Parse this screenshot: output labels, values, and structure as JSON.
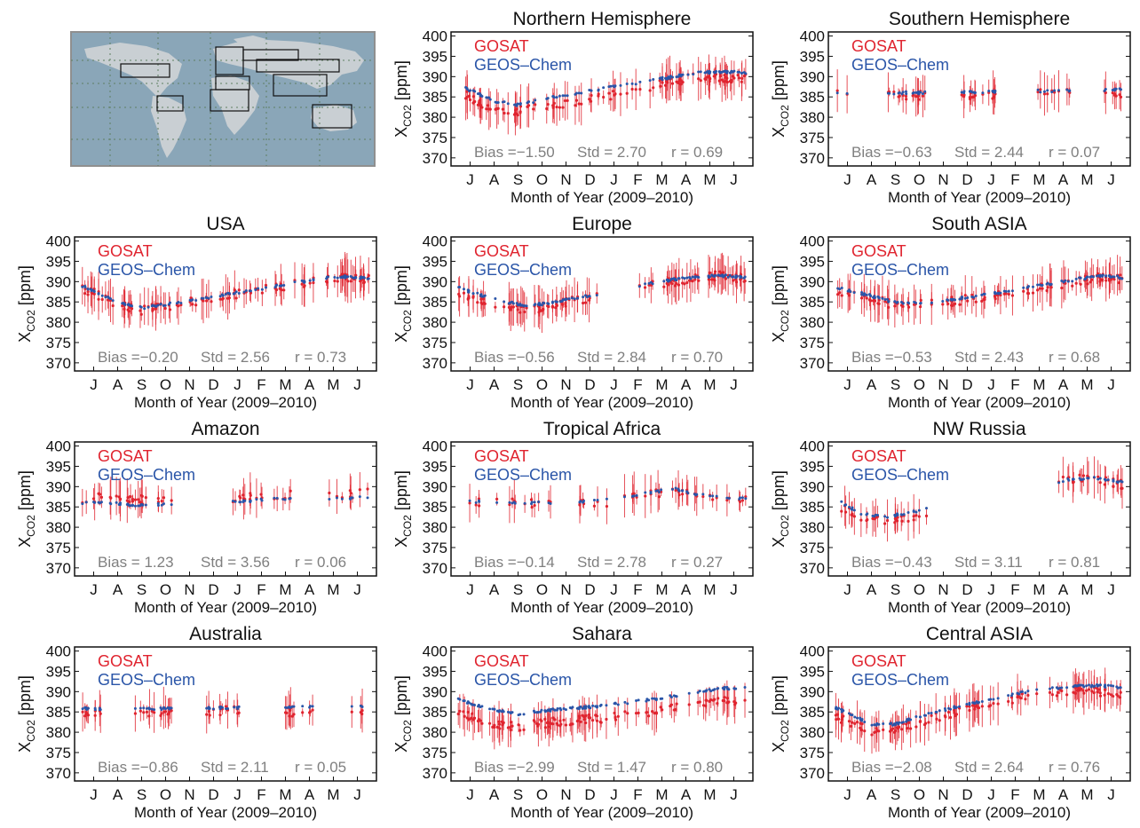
{
  "figure": {
    "ylabel_main": "X",
    "ylabel_sub": "CO2",
    "ylabel_unit": " [ppm]",
    "xlabel": "Month of Year (2009–2010)",
    "legend": [
      "GOSAT",
      "GEOS–Chem"
    ],
    "colors": {
      "gosat": "#e0242f",
      "geos_chem": "#2a55a8",
      "stats": "#7f7f7f",
      "map_land": "#c9cfd3",
      "map_ocean": "#8aa6b8"
    }
  },
  "chart_data": [
    {
      "type": "scatter",
      "title": "Northern Hemisphere",
      "x_ticks": [
        "J",
        "A",
        "S",
        "O",
        "N",
        "D",
        "J",
        "F",
        "M",
        "A",
        "M",
        "J"
      ],
      "ylim": [
        368,
        401
      ],
      "y_ticks": [
        370,
        375,
        380,
        385,
        390,
        395,
        400
      ],
      "xlabel": "Month of Year (2009–2010)",
      "ylabel": "XCO2 [ppm]",
      "series": [
        {
          "name": "GOSAT",
          "x_month": [
            0,
            1.5,
            2.5,
            4,
            6,
            8,
            10,
            11,
            12
          ],
          "y": [
            386.5,
            382.0,
            381.5,
            383.0,
            385.0,
            387.5,
            390.0,
            389.8,
            389.5
          ]
        },
        {
          "name": "GEOS–Chem",
          "x_month": [
            0,
            1.5,
            2.5,
            4,
            6,
            8,
            10,
            11,
            12
          ],
          "y": [
            388.0,
            384.0,
            383.0,
            385.0,
            387.0,
            389.0,
            391.0,
            391.2,
            391.0
          ]
        }
      ],
      "stats": {
        "bias": "Bias =−1.50",
        "std": "Std = 2.70",
        "r": "r = 0.69"
      }
    },
    {
      "type": "scatter",
      "title": "Southern Hemisphere",
      "x_ticks": [
        "J",
        "A",
        "S",
        "O",
        "N",
        "D",
        "J",
        "F",
        "M",
        "A",
        "M",
        "J"
      ],
      "ylim": [
        368,
        401
      ],
      "y_ticks": [
        370,
        375,
        380,
        385,
        390,
        395,
        400
      ],
      "xlabel": "Month of Year (2009–2010)",
      "ylabel": "XCO2 [ppm]",
      "series": [
        {
          "name": "GOSAT",
          "x_month": [
            0,
            3,
            6,
            9,
            12
          ],
          "y": [
            385.5,
            385.3,
            385.5,
            385.8,
            386.0
          ]
        },
        {
          "name": "GEOS–Chem",
          "x_month": [
            0,
            3,
            6,
            9,
            12
          ],
          "y": [
            386.0,
            386.0,
            386.2,
            386.5,
            386.8
          ]
        }
      ],
      "stats": {
        "bias": "Bias =−0.63",
        "std": "Std = 2.44",
        "r": "r = 0.07"
      }
    },
    {
      "type": "scatter",
      "title": "USA",
      "x_ticks": [
        "J",
        "A",
        "S",
        "O",
        "N",
        "D",
        "J",
        "F",
        "M",
        "A",
        "M",
        "J"
      ],
      "ylim": [
        368,
        401
      ],
      "y_ticks": [
        370,
        375,
        380,
        385,
        390,
        395,
        400
      ],
      "xlabel": "Month of Year (2009–2010)",
      "ylabel": "XCO2 [ppm]",
      "series": [
        {
          "name": "GOSAT",
          "x_month": [
            0,
            1.5,
            2.5,
            4,
            6,
            8,
            10,
            11,
            12
          ],
          "y": [
            388.5,
            384.5,
            383.0,
            384.5,
            386.5,
            388.5,
            390.5,
            391.0,
            390.5
          ]
        },
        {
          "name": "GEOS–Chem",
          "x_month": [
            0,
            1.5,
            2.5,
            4,
            6,
            8,
            10,
            11,
            12
          ],
          "y": [
            389.0,
            385.0,
            383.5,
            384.8,
            386.8,
            388.8,
            390.8,
            391.2,
            390.8
          ]
        }
      ],
      "stats": {
        "bias": "Bias =−0.20",
        "std": "Std = 2.56",
        "r": "r = 0.73"
      }
    },
    {
      "type": "scatter",
      "title": "Europe",
      "x_ticks": [
        "J",
        "A",
        "S",
        "O",
        "N",
        "D",
        "J",
        "F",
        "M",
        "A",
        "M",
        "J"
      ],
      "ylim": [
        368,
        401
      ],
      "y_ticks": [
        370,
        375,
        380,
        385,
        390,
        395,
        400
      ],
      "xlabel": "Month of Year (2009–2010)",
      "ylabel": "XCO2 [ppm]",
      "series": [
        {
          "name": "GOSAT",
          "x_month": [
            0,
            1,
            2,
            3,
            4,
            5,
            8,
            9,
            10,
            11,
            12
          ],
          "y": [
            387.5,
            385.5,
            383.5,
            383.0,
            384.5,
            385.5,
            389.0,
            390.0,
            391.0,
            391.5,
            390.5
          ]
        },
        {
          "name": "GEOS–Chem",
          "x_month": [
            0,
            1,
            2,
            3,
            4,
            5,
            8,
            9,
            10,
            11,
            12
          ],
          "y": [
            388.5,
            386.5,
            385.0,
            384.0,
            385.0,
            386.0,
            389.5,
            390.5,
            391.2,
            391.5,
            391.0
          ]
        }
      ],
      "stats": {
        "bias": "Bias =−0.56",
        "std": "Std = 2.84",
        "r": "r = 0.70"
      }
    },
    {
      "type": "scatter",
      "title": "South ASIA",
      "x_ticks": [
        "J",
        "A",
        "S",
        "O",
        "N",
        "D",
        "J",
        "F",
        "M",
        "A",
        "M",
        "J"
      ],
      "ylim": [
        368,
        401
      ],
      "y_ticks": [
        370,
        375,
        380,
        385,
        390,
        395,
        400
      ],
      "xlabel": "Month of Year (2009–2010)",
      "ylabel": "XCO2 [ppm]",
      "series": [
        {
          "name": "GOSAT",
          "x_month": [
            0,
            1.5,
            2.5,
            4,
            6,
            8,
            10,
            11,
            12
          ],
          "y": [
            388.0,
            386.0,
            384.0,
            384.5,
            386.0,
            388.0,
            390.0,
            391.0,
            390.5
          ]
        },
        {
          "name": "GEOS–Chem",
          "x_month": [
            0,
            1.5,
            2.5,
            4,
            6,
            8,
            10,
            11,
            12
          ],
          "y": [
            388.5,
            386.5,
            384.8,
            385.0,
            386.5,
            388.5,
            390.5,
            391.5,
            391.0
          ]
        }
      ],
      "stats": {
        "bias": "Bias =−0.53",
        "std": "Std = 2.43",
        "r": "r = 0.68"
      }
    },
    {
      "type": "scatter",
      "title": "Amazon",
      "x_ticks": [
        "J",
        "A",
        "S",
        "O",
        "N",
        "D",
        "J",
        "F",
        "M",
        "A",
        "M",
        "J"
      ],
      "ylim": [
        368,
        401
      ],
      "y_ticks": [
        370,
        375,
        380,
        385,
        390,
        395,
        400
      ],
      "xlabel": "Month of Year (2009–2010)",
      "ylabel": "XCO2 [ppm]",
      "series": [
        {
          "name": "GOSAT",
          "x_month": [
            0,
            1,
            2,
            3,
            7,
            8,
            11,
            12
          ],
          "y": [
            387.0,
            387.5,
            387.0,
            386.5,
            387.5,
            388.0,
            388.0,
            388.5
          ]
        },
        {
          "name": "GEOS–Chem",
          "x_month": [
            0,
            1,
            2,
            3,
            7,
            8,
            11,
            12
          ],
          "y": [
            386.0,
            386.0,
            385.5,
            385.5,
            386.5,
            387.0,
            387.0,
            387.5
          ]
        }
      ],
      "stats": {
        "bias": "Bias = 1.23",
        "std": "Std = 3.56",
        "r": "r = 0.06"
      }
    },
    {
      "type": "scatter",
      "title": "Tropical Africa",
      "x_ticks": [
        "J",
        "A",
        "S",
        "O",
        "N",
        "D",
        "J",
        "F",
        "M",
        "A",
        "M",
        "J"
      ],
      "ylim": [
        368,
        401
      ],
      "y_ticks": [
        370,
        375,
        380,
        385,
        390,
        395,
        400
      ],
      "xlabel": "Month of Year (2009–2010)",
      "ylabel": "XCO2 [ppm]",
      "series": [
        {
          "name": "GOSAT",
          "x_month": [
            0,
            2,
            4,
            6,
            8,
            9,
            10,
            12
          ],
          "y": [
            386.0,
            386.0,
            385.5,
            386.0,
            388.0,
            389.0,
            388.0,
            386.5
          ]
        },
        {
          "name": "GEOS–Chem",
          "x_month": [
            0,
            2,
            4,
            6,
            8,
            9,
            10,
            12
          ],
          "y": [
            386.5,
            386.0,
            386.0,
            386.5,
            388.5,
            389.5,
            388.0,
            387.0
          ]
        }
      ],
      "stats": {
        "bias": "Bias =−0.14",
        "std": "Std = 2.78",
        "r": "r = 0.27"
      }
    },
    {
      "type": "scatter",
      "title": "NW Russia",
      "x_ticks": [
        "J",
        "A",
        "S",
        "O",
        "N",
        "D",
        "J",
        "F",
        "M",
        "A",
        "M",
        "J"
      ],
      "ylim": [
        368,
        401
      ],
      "y_ticks": [
        370,
        375,
        380,
        385,
        390,
        395,
        400
      ],
      "xlabel": "Month of Year (2009–2010)",
      "ylabel": "XCO2 [ppm]",
      "series": [
        {
          "name": "GOSAT",
          "x_month": [
            0,
            1,
            2,
            3,
            10,
            11,
            12
          ],
          "y": [
            386.0,
            382.0,
            381.5,
            382.5,
            392.0,
            391.5,
            390.5
          ]
        },
        {
          "name": "GEOS–Chem",
          "x_month": [
            0,
            1,
            2,
            3,
            10,
            11,
            12
          ],
          "y": [
            387.0,
            383.5,
            382.5,
            383.5,
            392.0,
            392.0,
            391.0
          ]
        }
      ],
      "stats": {
        "bias": "Bias =−0.43",
        "std": "Std = 3.11",
        "r": "r = 0.81"
      }
    },
    {
      "type": "scatter",
      "title": "Australia",
      "x_ticks": [
        "J",
        "A",
        "S",
        "O",
        "N",
        "D",
        "J",
        "F",
        "M",
        "A",
        "M",
        "J"
      ],
      "ylim": [
        368,
        401
      ],
      "y_ticks": [
        370,
        375,
        380,
        385,
        390,
        395,
        400
      ],
      "xlabel": "Month of Year (2009–2010)",
      "ylabel": "XCO2 [ppm]",
      "series": [
        {
          "name": "GOSAT",
          "x_month": [
            0,
            3,
            6,
            9,
            12
          ],
          "y": [
            385.0,
            385.0,
            385.3,
            385.0,
            385.5
          ]
        },
        {
          "name": "GEOS–Chem",
          "x_month": [
            0,
            3,
            6,
            9,
            12
          ],
          "y": [
            385.8,
            385.8,
            386.0,
            386.2,
            386.5
          ]
        }
      ],
      "stats": {
        "bias": "Bias =−0.86",
        "std": "Std = 2.11",
        "r": "r = 0.05"
      }
    },
    {
      "type": "scatter",
      "title": "Sahara",
      "x_ticks": [
        "J",
        "A",
        "S",
        "O",
        "N",
        "D",
        "J",
        "F",
        "M",
        "A",
        "M",
        "J"
      ],
      "ylim": [
        368,
        401
      ],
      "y_ticks": [
        370,
        375,
        380,
        385,
        390,
        395,
        400
      ],
      "xlabel": "Month of Year (2009–2010)",
      "ylabel": "XCO2 [ppm]",
      "series": [
        {
          "name": "GOSAT",
          "x_month": [
            0,
            1.5,
            2.5,
            4,
            6,
            8,
            10,
            11,
            12
          ],
          "y": [
            385.0,
            382.0,
            381.5,
            382.5,
            383.5,
            385.0,
            387.0,
            387.5,
            387.5
          ]
        },
        {
          "name": "GEOS–Chem",
          "x_month": [
            0,
            1.5,
            2.5,
            4,
            6,
            8,
            10,
            11,
            12
          ],
          "y": [
            388.0,
            385.5,
            384.5,
            385.5,
            386.5,
            388.0,
            390.0,
            390.8,
            391.0
          ]
        }
      ],
      "stats": {
        "bias": "Bias =−2.99",
        "std": "Std = 1.47",
        "r": "r = 0.80"
      }
    },
    {
      "type": "scatter",
      "title": "Central ASIA",
      "x_ticks": [
        "J",
        "A",
        "S",
        "O",
        "N",
        "D",
        "J",
        "F",
        "M",
        "A",
        "M",
        "J"
      ],
      "ylim": [
        368,
        401
      ],
      "y_ticks": [
        370,
        375,
        380,
        385,
        390,
        395,
        400
      ],
      "xlabel": "Month of Year (2009–2010)",
      "ylabel": "XCO2 [ppm]",
      "series": [
        {
          "name": "GOSAT",
          "x_month": [
            0,
            1.5,
            2.5,
            4,
            6,
            8,
            10,
            11,
            12
          ],
          "y": [
            384.0,
            380.0,
            380.5,
            383.5,
            386.5,
            389.0,
            390.5,
            390.0,
            389.0
          ]
        },
        {
          "name": "GEOS–Chem",
          "x_month": [
            0,
            1.5,
            2.5,
            4,
            6,
            8,
            10,
            11,
            12
          ],
          "y": [
            386.0,
            382.0,
            382.0,
            384.8,
            387.5,
            390.0,
            391.5,
            391.5,
            391.0
          ]
        }
      ],
      "stats": {
        "bias": "Bias =−2.08",
        "std": "Std = 2.64",
        "r": "r = 0.76"
      }
    }
  ]
}
